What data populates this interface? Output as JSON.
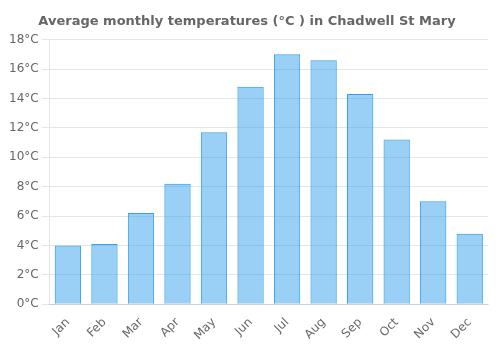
{
  "chart_data": {
    "type": "bar",
    "title": "Average monthly temperatures (°C ) in Chadwell St Mary",
    "categories": [
      "Jan",
      "Feb",
      "Mar",
      "Apr",
      "May",
      "Jun",
      "Jul",
      "Aug",
      "Sep",
      "Oct",
      "Nov",
      "Dec"
    ],
    "values": [
      4.0,
      4.1,
      6.2,
      8.2,
      11.7,
      14.8,
      17.0,
      16.6,
      14.3,
      11.2,
      7.0,
      4.8
    ],
    "ylim": [
      0,
      18
    ],
    "yticks": [
      {
        "value": 0,
        "label": "0°C"
      },
      {
        "value": 2,
        "label": "2°C"
      },
      {
        "value": 4,
        "label": "4°C"
      },
      {
        "value": 6,
        "label": "6°C"
      },
      {
        "value": 8,
        "label": "8°C"
      },
      {
        "value": 10,
        "label": "10°C"
      },
      {
        "value": 12,
        "label": "12°C"
      },
      {
        "value": 14,
        "label": "14°C"
      },
      {
        "value": 16,
        "label": "16°C"
      },
      {
        "value": 18,
        "label": "18°C"
      }
    ],
    "grid": true
  }
}
